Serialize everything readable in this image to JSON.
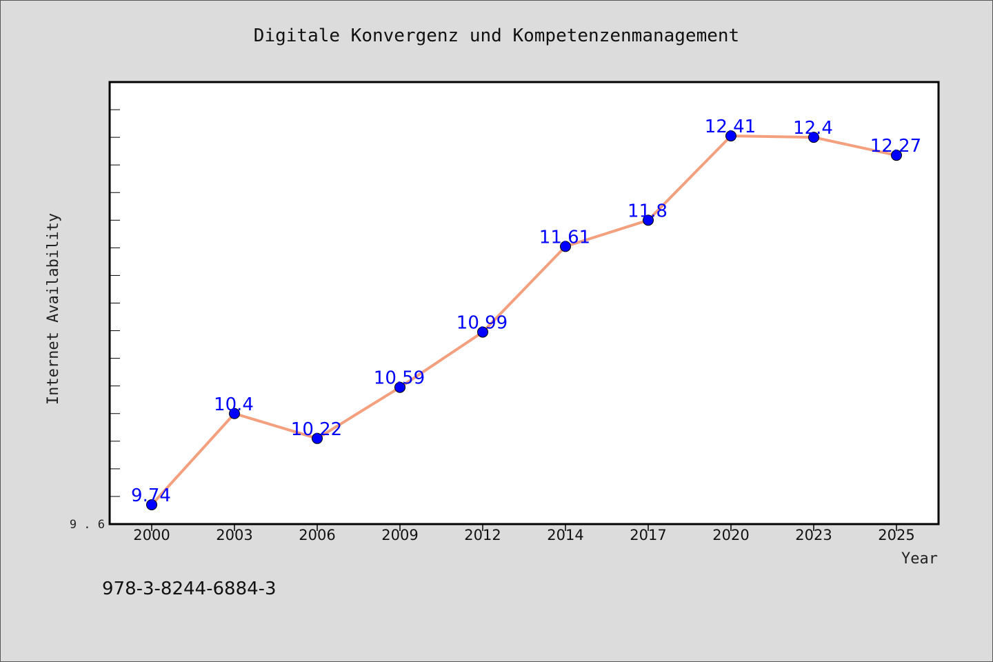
{
  "chart_data": {
    "type": "line",
    "title": "Digitale Konvergenz und Kompetenzenmanagement",
    "xlabel": "Year",
    "ylabel": "Internet Availability",
    "categories": [
      "2000",
      "2003",
      "2006",
      "2009",
      "2012",
      "2014",
      "2017",
      "2020",
      "2023",
      "2025"
    ],
    "series": [
      {
        "values": [
          9.74,
          10.4,
          10.22,
          10.59,
          10.99,
          11.61,
          11.8,
          12.41,
          12.4,
          12.27
        ],
        "data_labels": [
          "9.74",
          "10.4",
          "10.22",
          "10.59",
          "10.99",
          "11.61",
          "11.8",
          "12.41",
          "12.4",
          "12.27"
        ],
        "line_color": "#f4a07e",
        "marker_color": "#0000ff"
      }
    ],
    "ylim": [
      9.6,
      12.8
    ],
    "ytick_labels": [
      "9.6"
    ],
    "grid": false,
    "legend": "none"
  },
  "footer": {
    "isbn": "978-3-8244-6884-3"
  },
  "colors": {
    "background": "#dcdcdc",
    "plot_background": "#ffffff",
    "line": "#f4a07e",
    "marker": "#0000ff",
    "data_label": "#0000ff"
  }
}
